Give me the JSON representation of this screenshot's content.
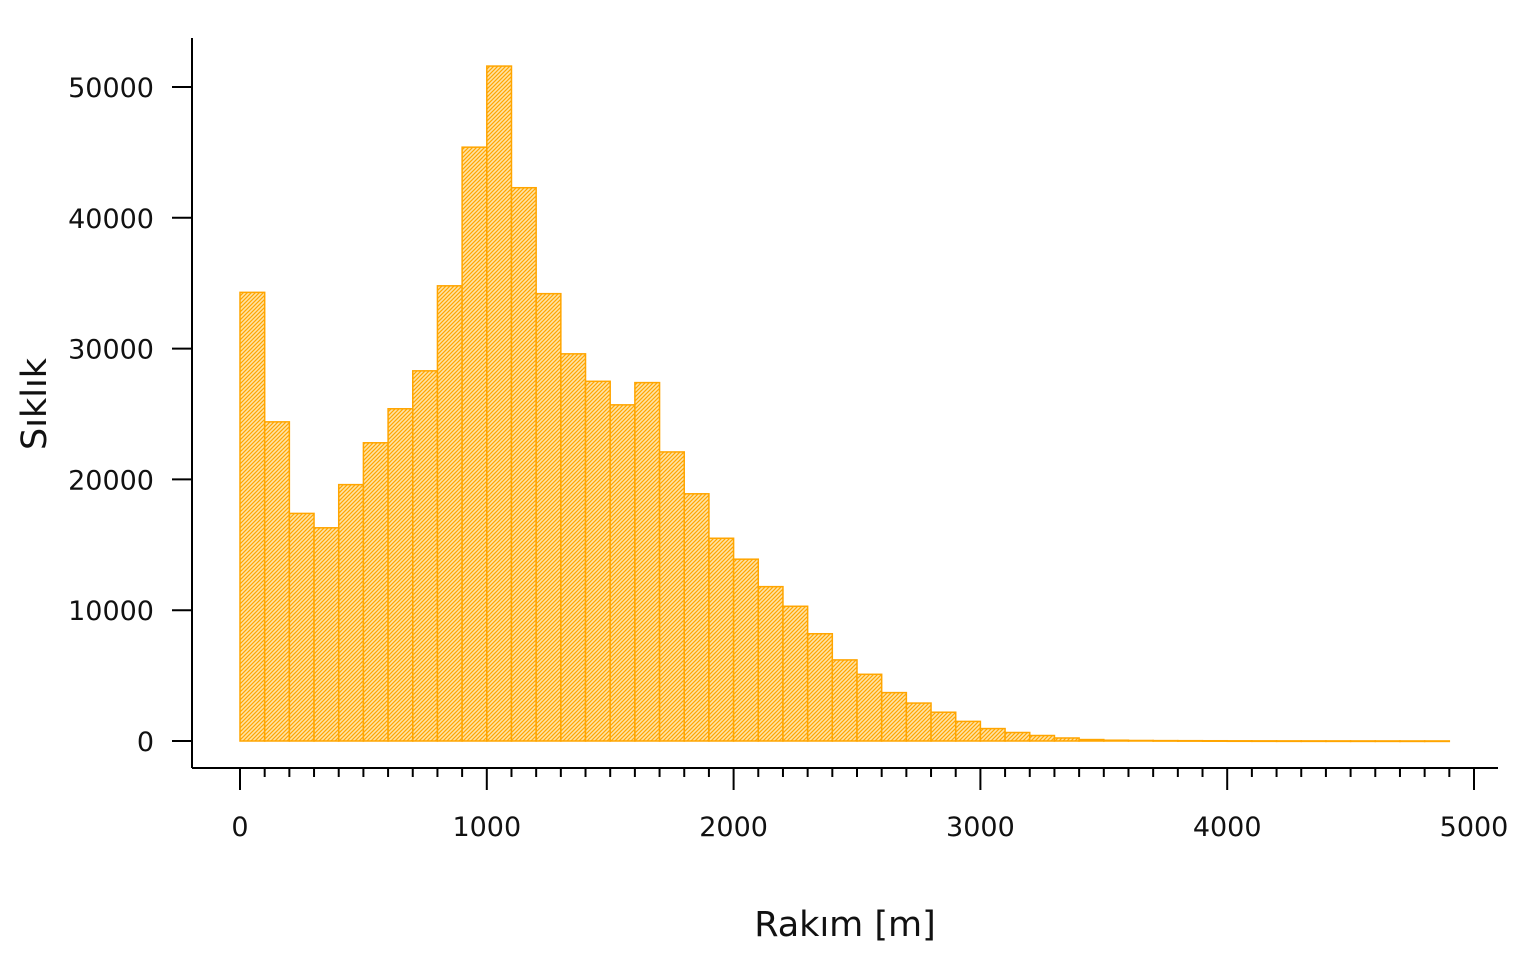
{
  "chart_data": {
    "type": "bar",
    "histogram": true,
    "bin_width": 100,
    "bin_start": 0,
    "values": [
      34300,
      24400,
      17400,
      16300,
      19600,
      22800,
      25400,
      28300,
      34800,
      45400,
      51600,
      42300,
      34200,
      29600,
      27500,
      25700,
      27400,
      22100,
      18900,
      15500,
      13900,
      11800,
      10300,
      8200,
      6200,
      5100,
      3700,
      2900,
      2200,
      1500,
      950,
      650,
      420,
      230,
      110,
      60,
      40,
      30,
      25,
      20,
      15,
      12,
      10,
      9,
      8,
      7,
      6,
      5,
      5
    ],
    "xlabel": "Rakım [m]",
    "ylabel": "Sıklık",
    "xlim": [
      0,
      5000
    ],
    "ylim": [
      0,
      50000
    ],
    "x_ticks": [
      "0",
      "1000",
      "2000",
      "3000",
      "4000",
      "5000"
    ],
    "y_ticks": [
      "0",
      "10000",
      "20000",
      "30000",
      "40000",
      "50000"
    ],
    "grid": false,
    "bar_color": "#FFA500",
    "fill_pattern": "diagonal-hatch"
  }
}
